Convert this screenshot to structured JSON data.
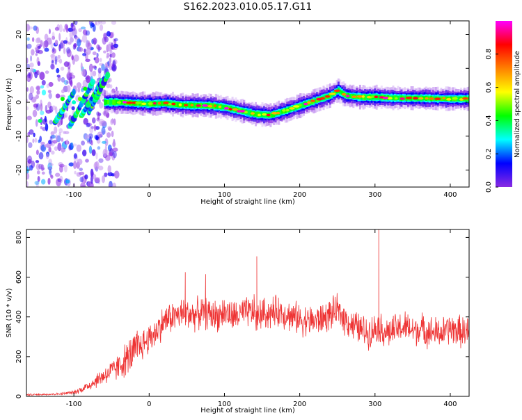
{
  "figure": {
    "title": "S162.2023.010.05.17.G11"
  },
  "chart_data": [
    {
      "type": "heatmap",
      "title": "S162.2023.010.05.17.G11",
      "xlabel": "Height of straight line (km)",
      "ylabel": "Frequency (Hz)",
      "xlim": [
        -163,
        425
      ],
      "ylim": [
        -25,
        24
      ],
      "xticks": [
        -100,
        0,
        100,
        200,
        300,
        400
      ],
      "yticks": [
        -20,
        -10,
        0,
        10,
        20
      ],
      "grid": false,
      "ridge": {
        "description_free": true,
        "x": [
          -40,
          -20,
          0,
          20,
          40,
          60,
          80,
          100,
          120,
          140,
          160,
          180,
          200,
          220,
          240,
          250,
          260,
          280,
          300,
          320,
          340,
          360,
          380,
          400,
          420
        ],
        "frequency": [
          0,
          -0.3,
          -0.5,
          -0.3,
          -0.8,
          -0.9,
          -1,
          -1.5,
          -2.5,
          -3.5,
          -3.8,
          -2.5,
          -1,
          0.5,
          2,
          3.5,
          2,
          1.5,
          1.5,
          1.3,
          1.2,
          1.2,
          1.1,
          1,
          1
        ]
      },
      "colorbar": {
        "label": "Normalized spectral amplitude",
        "range": [
          0,
          1
        ],
        "ticks": [
          "0.0",
          "0.2",
          "0.4",
          "0.6",
          "0.8"
        ],
        "tick_values": [
          0,
          0.2,
          0.4,
          0.6,
          0.8
        ],
        "colormap": [
          "#ffffff",
          "#8a2be2",
          "#0000ff",
          "#00ffff",
          "#00ff00",
          "#ffff00",
          "#ff8000",
          "#ff0000",
          "#ff00ff"
        ]
      }
    },
    {
      "type": "line",
      "xlabel": "Height of straight line (km)",
      "ylabel": "SNR (10 * v/v)",
      "xlim": [
        -163,
        425
      ],
      "ylim": [
        0,
        840
      ],
      "xticks": [
        -100,
        0,
        100,
        200,
        300,
        400
      ],
      "yticks": [
        0,
        200,
        400,
        600,
        800
      ],
      "grid": false,
      "series": [
        {
          "color": "#ee3333",
          "x": [
            -163,
            -140,
            -120,
            -100,
            -90,
            -80,
            -70,
            -60,
            -50,
            -40,
            -30,
            -20,
            -10,
            0,
            10,
            20,
            30,
            40,
            50,
            60,
            70,
            80,
            90,
            100,
            110,
            120,
            130,
            140,
            142,
            150,
            160,
            170,
            180,
            190,
            200,
            210,
            220,
            230,
            240,
            250,
            260,
            270,
            280,
            290,
            300,
            303,
            310,
            320,
            330,
            340,
            350,
            360,
            370,
            380,
            390,
            400,
            410,
            425
          ],
          "y": [
            8,
            10,
            12,
            20,
            35,
            55,
            80,
            105,
            125,
            150,
            190,
            220,
            260,
            290,
            330,
            380,
            400,
            410,
            420,
            410,
            420,
            415,
            405,
            425,
            400,
            410,
            420,
            430,
            390,
            420,
            415,
            430,
            420,
            400,
            390,
            380,
            380,
            390,
            410,
            430,
            390,
            360,
            340,
            320,
            340,
            360,
            330,
            320,
            340,
            350,
            330,
            340,
            330,
            320,
            320,
            340,
            330,
            320
          ],
          "peaks_x": [
            48,
            75,
            143,
            305
          ],
          "peaks_y": [
            625,
            615,
            705,
            840
          ]
        }
      ]
    }
  ]
}
